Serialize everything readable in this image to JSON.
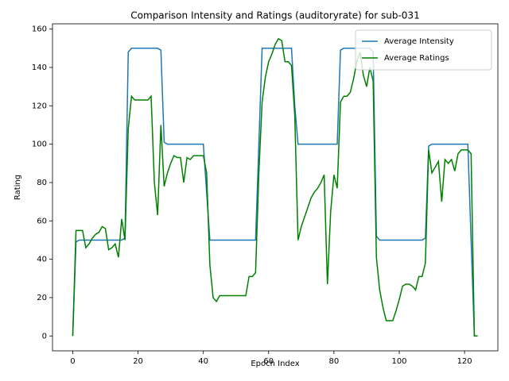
{
  "chart_data": {
    "type": "line",
    "title": "Comparison Intensity and Ratings (auditoryrate) for sub-031",
    "x_label": "Epoch Index",
    "y_label": "Rating",
    "x": [
      0,
      1,
      2,
      3,
      4,
      5,
      6,
      7,
      8,
      9,
      10,
      11,
      12,
      13,
      14,
      15,
      16,
      17,
      18,
      19,
      20,
      21,
      22,
      23,
      24,
      25,
      26,
      27,
      28,
      29,
      30,
      31,
      32,
      33,
      34,
      35,
      36,
      37,
      38,
      39,
      40,
      41,
      42,
      43,
      44,
      45,
      46,
      47,
      48,
      49,
      50,
      51,
      52,
      53,
      54,
      55,
      56,
      57,
      58,
      59,
      60,
      61,
      62,
      63,
      64,
      65,
      66,
      67,
      68,
      69,
      70,
      71,
      72,
      73,
      74,
      75,
      76,
      77,
      78,
      79,
      80,
      81,
      82,
      83,
      84,
      85,
      86,
      87,
      88,
      89,
      90,
      91,
      92,
      93,
      94,
      95,
      96,
      97,
      98,
      99,
      100,
      101,
      102,
      103,
      104,
      105,
      106,
      107,
      108,
      109,
      110,
      111,
      112,
      113,
      114,
      115,
      116,
      117,
      118,
      119,
      120,
      121,
      122,
      123,
      124
    ],
    "series": [
      {
        "name": "Average Intensity",
        "color": "#1f77b4",
        "values": [
          0,
          49,
          50,
          50,
          50,
          50,
          50,
          50,
          50,
          50,
          50,
          50,
          50,
          50,
          50,
          50,
          51,
          148,
          150,
          150,
          150,
          150,
          150,
          150,
          150,
          150,
          150,
          149,
          101,
          100,
          100,
          100,
          100,
          100,
          100,
          100,
          100,
          100,
          100,
          100,
          100,
          75,
          50,
          50,
          50,
          50,
          50,
          50,
          50,
          50,
          50,
          50,
          50,
          50,
          50,
          50,
          50,
          100,
          150,
          150,
          150,
          150,
          150,
          150,
          150,
          150,
          150,
          150,
          120,
          100,
          100,
          100,
          100,
          100,
          100,
          100,
          100,
          100,
          100,
          100,
          100,
          100,
          149,
          150,
          150,
          150,
          150,
          150,
          150,
          150,
          150,
          150,
          148,
          52,
          50,
          50,
          50,
          50,
          50,
          50,
          50,
          50,
          50,
          50,
          50,
          50,
          50,
          50,
          51,
          99,
          100,
          100,
          100,
          100,
          100,
          100,
          100,
          100,
          100,
          100,
          100,
          100,
          50,
          0,
          0
        ]
      },
      {
        "name": "Average Ratings",
        "color": "#008000",
        "values": [
          0,
          55,
          55,
          55,
          46,
          48,
          51,
          53,
          54,
          57,
          56,
          45,
          46,
          48,
          41,
          61,
          50,
          108,
          125,
          123,
          123,
          123,
          123,
          123,
          125,
          80,
          63,
          110,
          78,
          85,
          90,
          94,
          93,
          93,
          80,
          93,
          92,
          94,
          94,
          94,
          94,
          85,
          37,
          20,
          18,
          21,
          21,
          21,
          21,
          21,
          21,
          21,
          21,
          21,
          31,
          31,
          33,
          85,
          122,
          135,
          143,
          147,
          152,
          155,
          154,
          143,
          143,
          141,
          115,
          50,
          57,
          62,
          67,
          72,
          75,
          77,
          80,
          84,
          27,
          65,
          84,
          77,
          122,
          125,
          125,
          127,
          134,
          143,
          148,
          136,
          130,
          140,
          133,
          41,
          24,
          15,
          8,
          8,
          8,
          13,
          19,
          26,
          27,
          27,
          26,
          24,
          31,
          31,
          38,
          97,
          85,
          88,
          91,
          70,
          92,
          90,
          92,
          86,
          95,
          97,
          97,
          97,
          95,
          0,
          0
        ]
      }
    ],
    "xlim": [
      -6.2,
      130.2
    ],
    "ylim": [
      -7.75,
      162.75
    ],
    "xticks": [
      0,
      20,
      40,
      60,
      80,
      100,
      120
    ],
    "yticks": [
      0,
      20,
      40,
      60,
      80,
      100,
      120,
      140,
      160
    ],
    "legend": "upper right"
  }
}
